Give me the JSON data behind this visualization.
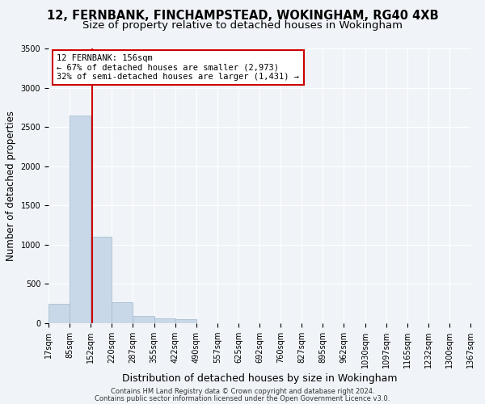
{
  "title1": "12, FERNBANK, FINCHAMPSTEAD, WOKINGHAM, RG40 4XB",
  "title2": "Size of property relative to detached houses in Wokingham",
  "xlabel": "Distribution of detached houses by size in Wokingham",
  "ylabel": "Number of detached properties",
  "bin_edges": [
    17,
    85,
    152,
    220,
    287,
    355,
    422,
    490,
    557,
    625,
    692,
    760,
    827,
    895,
    962,
    1030,
    1097,
    1165,
    1232,
    1300,
    1367
  ],
  "bar_heights": [
    250,
    2650,
    1100,
    270,
    90,
    60,
    50,
    5,
    0,
    0,
    0,
    0,
    0,
    0,
    0,
    0,
    0,
    0,
    0,
    0
  ],
  "bar_color": "#c8d8e8",
  "bar_edgecolor": "#a0b8cc",
  "vline_x": 156,
  "vline_color": "#cc0000",
  "ylim": [
    0,
    3500
  ],
  "yticks": [
    0,
    500,
    1000,
    1500,
    2000,
    2500,
    3000,
    3500
  ],
  "annotation_line1": "12 FERNBANK: 156sqm",
  "annotation_line2": "← 67% of detached houses are smaller (2,973)",
  "annotation_line3": "32% of semi-detached houses are larger (1,431) →",
  "footer1": "Contains HM Land Registry data © Crown copyright and database right 2024.",
  "footer2": "Contains public sector information licensed under the Open Government Licence v3.0.",
  "bg_color": "#f0f4f8",
  "grid_color": "#ffffff",
  "title1_fontsize": 10.5,
  "title2_fontsize": 9.5,
  "xlabel_fontsize": 9,
  "ylabel_fontsize": 8.5,
  "tick_fontsize": 7,
  "annot_fontsize": 7.5,
  "footer_fontsize": 6
}
